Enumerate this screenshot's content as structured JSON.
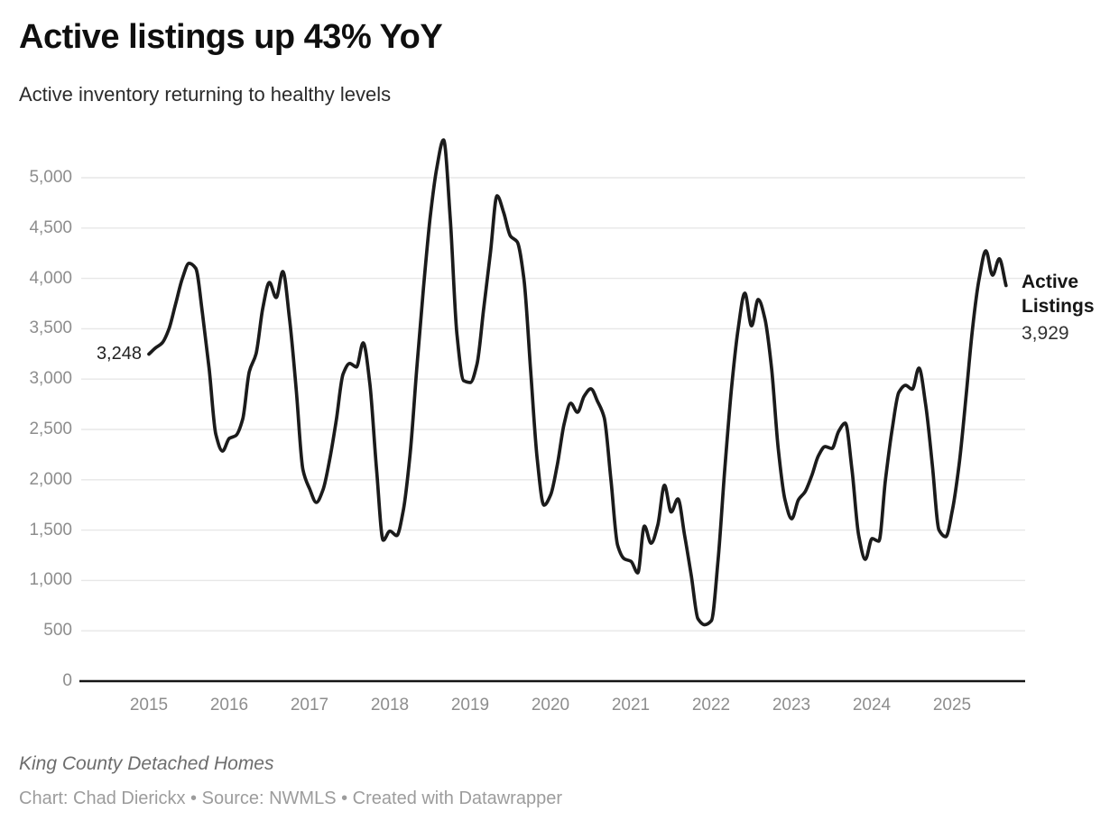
{
  "header": {
    "title": "Active listings up 43% YoY",
    "subtitle": "Active inventory returning to healthy levels"
  },
  "footer": {
    "notes": "King County Detached Homes",
    "byline": "Chart: Chad Dierickx • Source: NWMLS • Created with Datawrapper"
  },
  "chart_data": {
    "type": "line",
    "title": "Active listings up 43% YoY",
    "subtitle": "Active inventory returning to healthy levels",
    "x_unit": "month",
    "x_start": "2015-01",
    "x_end": "2025-09",
    "x_tick_years": [
      "2015",
      "2016",
      "2017",
      "2018",
      "2019",
      "2020",
      "2021",
      "2022",
      "2023",
      "2024",
      "2025"
    ],
    "y_ticks": [
      0,
      500,
      1000,
      1500,
      2000,
      2500,
      3000,
      3500,
      4000,
      4500,
      5000
    ],
    "y_tick_labels": [
      "0",
      "500",
      "1,000",
      "1,500",
      "2,000",
      "2,500",
      "3,000",
      "3,500",
      "4,000",
      "4,500",
      "5,000"
    ],
    "ylim": [
      0,
      5420
    ],
    "grid": "horizontal-only",
    "xlabel": "",
    "ylabel": "",
    "legend_position": "right-of-line-end",
    "colors": {
      "line": "#1b1b1b",
      "grid": "#e7e7e7",
      "axis": "#151515",
      "tick_text": "#8d8d8d"
    },
    "annotations": {
      "first_value": "3,248",
      "first_point": "2015-01",
      "series_name": "Active Listings",
      "last_value": "3,929",
      "last_point": "2025-09"
    },
    "series": [
      {
        "name": "Active Listings",
        "start": "2015-01",
        "values": [
          3248,
          3310,
          3360,
          3500,
          3750,
          4000,
          4150,
          4100,
          3650,
          3100,
          2450,
          2285,
          2410,
          2440,
          2600,
          3075,
          3250,
          3700,
          3960,
          3810,
          4068,
          3600,
          2900,
          2100,
          1910,
          1775,
          1900,
          2200,
          2600,
          3050,
          3155,
          3120,
          3360,
          2950,
          2100,
          1400,
          1490,
          1445,
          1700,
          2250,
          3100,
          3900,
          4600,
          5100,
          5375,
          4600,
          3450,
          2985,
          2966,
          3150,
          3700,
          4250,
          4821,
          4650,
          4420,
          4364,
          4000,
          3100,
          2200,
          1747,
          1850,
          2150,
          2550,
          2760,
          2670,
          2830,
          2903,
          2780,
          2616,
          2000,
          1350,
          1215,
          1190,
          1075,
          1540,
          1370,
          1550,
          1945,
          1680,
          1810,
          1450,
          1050,
          620,
          560,
          600,
          1200,
          2100,
          2900,
          3500,
          3853,
          3530,
          3790,
          3600,
          3100,
          2300,
          1800,
          1613,
          1800,
          1882,
          2043,
          2240,
          2330,
          2310,
          2480,
          2563,
          2100,
          1450,
          1210,
          1416,
          1390,
          2000,
          2500,
          2868,
          2938,
          2900,
          3109,
          2750,
          2150,
          1500,
          1435,
          1700,
          2150,
          2800,
          3500,
          4000,
          4274,
          4032,
          4194,
          3929
        ]
      }
    ]
  }
}
